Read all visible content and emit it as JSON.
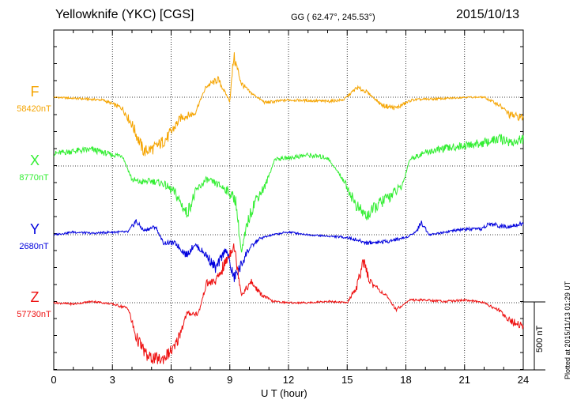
{
  "header": {
    "station": "Yellowknife (YKC)  [CGS]",
    "coords": "GG ( 62.47°, 245.53°)",
    "date": "2015/10/13"
  },
  "plotted_note": "Plotted at 2015/11/13 01:29 UT",
  "scale_label": "500 nT",
  "chart_data": {
    "type": "line",
    "title": "Yellowknife (YKC)  [CGS]",
    "xlabel": "U T (hour)",
    "xlim": [
      0,
      24
    ],
    "x_ticks": [
      "0",
      "3",
      "6",
      "9",
      "12",
      "15",
      "18",
      "21",
      "24"
    ],
    "grid": true,
    "scale_bar_nT": 500,
    "series": [
      {
        "name": "F",
        "baseline_label": "58420nT",
        "color": "#f5a400",
        "baseline_nT": 58420,
        "points": [
          [
            0,
            0
          ],
          [
            2.5,
            -20
          ],
          [
            3.5,
            -80
          ],
          [
            4,
            -200
          ],
          [
            4.6,
            -400
          ],
          [
            5.2,
            -370
          ],
          [
            5.8,
            -300
          ],
          [
            6.5,
            -150
          ],
          [
            7.2,
            -120
          ],
          [
            7.8,
            80
          ],
          [
            8.4,
            130
          ],
          [
            9,
            -30
          ],
          [
            9.2,
            300
          ],
          [
            9.6,
            100
          ],
          [
            10,
            40
          ],
          [
            10.8,
            -40
          ],
          [
            12,
            -20
          ],
          [
            13,
            -25
          ],
          [
            14,
            -30
          ],
          [
            14.8,
            -20
          ],
          [
            15.5,
            70
          ],
          [
            16,
            40
          ],
          [
            16.8,
            -60
          ],
          [
            17.5,
            -80
          ],
          [
            18.3,
            -20
          ],
          [
            19,
            -15
          ],
          [
            20,
            -10
          ],
          [
            21,
            0
          ],
          [
            22,
            0
          ],
          [
            22.8,
            -60
          ],
          [
            23.3,
            -130
          ],
          [
            24,
            -150
          ]
        ]
      },
      {
        "name": "X",
        "baseline_label": "8770nT",
        "color": "#33ee33",
        "baseline_nT": 8770,
        "points": [
          [
            0,
            90
          ],
          [
            1,
            110
          ],
          [
            2,
            120
          ],
          [
            3,
            80
          ],
          [
            3.5,
            80
          ],
          [
            4,
            -100
          ],
          [
            4.4,
            -120
          ],
          [
            5,
            -110
          ],
          [
            5.6,
            -130
          ],
          [
            6.2,
            -200
          ],
          [
            6.8,
            -350
          ],
          [
            7.3,
            -180
          ],
          [
            7.8,
            -100
          ],
          [
            8.3,
            -130
          ],
          [
            8.8,
            -170
          ],
          [
            9.3,
            -250
          ],
          [
            9.6,
            -650
          ],
          [
            9.9,
            -420
          ],
          [
            10.3,
            -250
          ],
          [
            10.8,
            -150
          ],
          [
            11.3,
            50
          ],
          [
            12,
            60
          ],
          [
            13,
            80
          ],
          [
            14,
            60
          ],
          [
            14.8,
            -100
          ],
          [
            15.5,
            -300
          ],
          [
            16,
            -370
          ],
          [
            16.6,
            -280
          ],
          [
            17.2,
            -220
          ],
          [
            17.8,
            -150
          ],
          [
            18.2,
            50
          ],
          [
            19,
            100
          ],
          [
            20,
            130
          ],
          [
            21,
            150
          ],
          [
            22,
            170
          ],
          [
            22.8,
            200
          ],
          [
            23.5,
            170
          ],
          [
            24,
            200
          ]
        ]
      },
      {
        "name": "Y",
        "baseline_label": "2680nT",
        "color": "#0000dd",
        "baseline_nT": 2680,
        "points": [
          [
            0,
            0
          ],
          [
            1,
            20
          ],
          [
            2,
            10
          ],
          [
            3,
            20
          ],
          [
            3.8,
            20
          ],
          [
            4.2,
            100
          ],
          [
            4.6,
            30
          ],
          [
            5.2,
            60
          ],
          [
            5.6,
            -60
          ],
          [
            6.2,
            -60
          ],
          [
            6.8,
            -150
          ],
          [
            7.2,
            -70
          ],
          [
            7.8,
            -150
          ],
          [
            8.3,
            -250
          ],
          [
            8.8,
            -100
          ],
          [
            9.2,
            -320
          ],
          [
            9.5,
            -250
          ],
          [
            9.9,
            -120
          ],
          [
            10.5,
            -30
          ],
          [
            11.2,
            0
          ],
          [
            12,
            20
          ],
          [
            13,
            0
          ],
          [
            14,
            -10
          ],
          [
            15,
            -20
          ],
          [
            15.5,
            -40
          ],
          [
            16,
            -60
          ],
          [
            17,
            -50
          ],
          [
            18,
            -20
          ],
          [
            18.5,
            20
          ],
          [
            18.8,
            90
          ],
          [
            19.2,
            0
          ],
          [
            20,
            20
          ],
          [
            21,
            40
          ],
          [
            21.8,
            40
          ],
          [
            22.3,
            80
          ],
          [
            23,
            60
          ],
          [
            24,
            80
          ]
        ]
      },
      {
        "name": "Z",
        "baseline_label": "57730nT",
        "color": "#ee1111",
        "baseline_nT": 57730,
        "points": [
          [
            0,
            0
          ],
          [
            1,
            -10
          ],
          [
            2,
            10
          ],
          [
            3,
            -10
          ],
          [
            3.8,
            -40
          ],
          [
            4.2,
            -250
          ],
          [
            4.8,
            -400
          ],
          [
            5.5,
            -420
          ],
          [
            6.2,
            -330
          ],
          [
            6.8,
            -80
          ],
          [
            7.4,
            -80
          ],
          [
            7.8,
            140
          ],
          [
            8.3,
            160
          ],
          [
            8.8,
            300
          ],
          [
            9.2,
            430
          ],
          [
            9.6,
            60
          ],
          [
            10.1,
            150
          ],
          [
            10.6,
            60
          ],
          [
            11.2,
            10
          ],
          [
            12,
            0
          ],
          [
            13,
            0
          ],
          [
            14,
            10
          ],
          [
            15,
            0
          ],
          [
            15.5,
            120
          ],
          [
            15.8,
            300
          ],
          [
            16.2,
            150
          ],
          [
            16.6,
            100
          ],
          [
            17,
            50
          ],
          [
            17.5,
            -50
          ],
          [
            18.2,
            20
          ],
          [
            19,
            20
          ],
          [
            20,
            10
          ],
          [
            21,
            20
          ],
          [
            22,
            0
          ],
          [
            22.8,
            -60
          ],
          [
            23.4,
            -140
          ],
          [
            24,
            -170
          ]
        ]
      }
    ]
  }
}
